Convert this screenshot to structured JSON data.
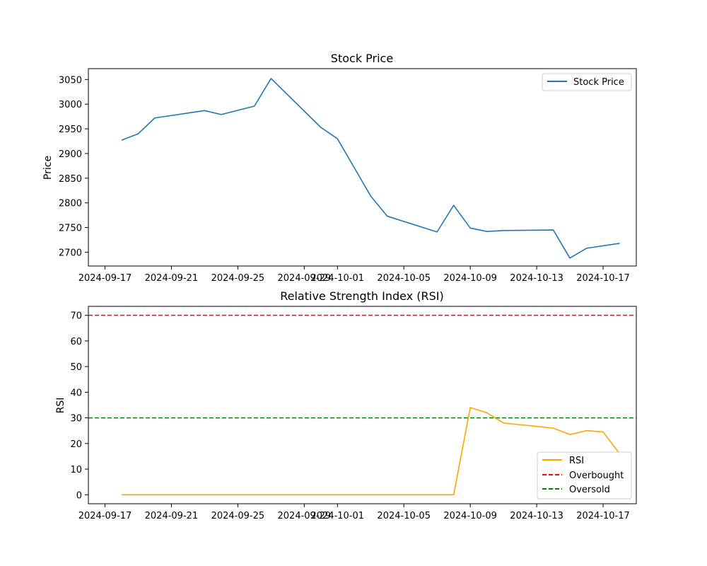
{
  "chart_data": [
    {
      "type": "line",
      "title": "Stock Price",
      "xlabel": "",
      "ylabel": "Price",
      "x_axis": "date",
      "xlim": [
        "2024-09-16",
        "2024-10-19"
      ],
      "ylim": [
        2672,
        3072
      ],
      "xticks": [
        "2024-09-17",
        "2024-09-21",
        "2024-09-25",
        "2024-09-29",
        "2024-10-01",
        "2024-10-05",
        "2024-10-09",
        "2024-10-13",
        "2024-10-17"
      ],
      "yticks": [
        2700,
        2750,
        2800,
        2850,
        2900,
        2950,
        3000,
        3050
      ],
      "legend_position": "top-right",
      "grid": false,
      "series": [
        {
          "name": "Stock Price",
          "color": "#1f77b4",
          "style": "solid",
          "x": [
            "2024-09-18",
            "2024-09-19",
            "2024-09-20",
            "2024-09-23",
            "2024-09-24",
            "2024-09-26",
            "2024-09-27",
            "2024-09-30",
            "2024-10-01",
            "2024-10-03",
            "2024-10-04",
            "2024-10-07",
            "2024-10-08",
            "2024-10-09",
            "2024-10-10",
            "2024-10-11",
            "2024-10-14",
            "2024-10-15",
            "2024-10-16",
            "2024-10-18"
          ],
          "y": [
            2927,
            2940,
            2972,
            2987,
            2979,
            2996,
            3052,
            2953,
            2930,
            2814,
            2773,
            2741,
            2795,
            2749,
            2742,
            2744,
            2745,
            2688,
            2708,
            2718
          ]
        }
      ]
    },
    {
      "type": "line",
      "title": "Relative Strength Index (RSI)",
      "xlabel": "",
      "ylabel": "RSI",
      "x_axis": "date",
      "xlim": [
        "2024-09-16",
        "2024-10-19"
      ],
      "ylim": [
        -3.5,
        73.5
      ],
      "xticks": [
        "2024-09-17",
        "2024-09-21",
        "2024-09-25",
        "2024-09-29",
        "2024-10-01",
        "2024-10-05",
        "2024-10-09",
        "2024-10-13",
        "2024-10-17"
      ],
      "yticks": [
        0,
        10,
        20,
        30,
        40,
        50,
        60,
        70
      ],
      "legend_position": "lower-right",
      "grid": false,
      "series": [
        {
          "name": "RSI",
          "color": "#ffa500",
          "style": "solid",
          "x": [
            "2024-09-18",
            "2024-09-19",
            "2024-09-20",
            "2024-09-23",
            "2024-09-24",
            "2024-09-26",
            "2024-09-27",
            "2024-09-30",
            "2024-10-01",
            "2024-10-03",
            "2024-10-04",
            "2024-10-07",
            "2024-10-08",
            "2024-10-09",
            "2024-10-10",
            "2024-10-11",
            "2024-10-14",
            "2024-10-15",
            "2024-10-16",
            "2024-10-17",
            "2024-10-18"
          ],
          "y": [
            0,
            0,
            0,
            0,
            0,
            0,
            0,
            0,
            0,
            0,
            0,
            0,
            0,
            34,
            32,
            28,
            26,
            23.5,
            25,
            24.5,
            16
          ]
        }
      ],
      "hlines": [
        {
          "name": "Overbought",
          "value": 70,
          "color": "#ff0000",
          "style": "dashed"
        },
        {
          "name": "Oversold",
          "value": 30,
          "color": "#008000",
          "style": "dashed"
        }
      ]
    }
  ]
}
